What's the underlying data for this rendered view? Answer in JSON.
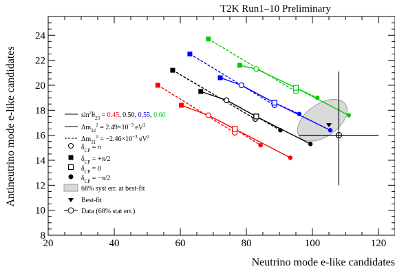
{
  "chart_data": {
    "type": "scatter",
    "title": "T2K Run1–10 Preliminary",
    "xlabel": "Neutrino mode e-like candidates",
    "ylabel": "Antineutrino mode e-like candidates",
    "xlim": [
      20,
      125
    ],
    "ylim": [
      8,
      25.5
    ],
    "xticks": [
      20,
      40,
      60,
      80,
      100,
      120
    ],
    "yticks": [
      8,
      10,
      12,
      14,
      16,
      18,
      20,
      22,
      24
    ],
    "grid": false,
    "legend_position": "left",
    "series": [
      {
        "name": "0.45",
        "color": "#ff0000",
        "normal": {
          "dcp_minus_half_pi": [
            93.3,
            14.2
          ],
          "dcp_zero": [
            76.5,
            16.5
          ],
          "dcp_pi": [
            68.5,
            17.6
          ],
          "dcp_plus_half_pi": [
            60.3,
            18.4
          ]
        },
        "inverted": {
          "dcp_minus_half_pi": [
            84.3,
            15.2
          ],
          "dcp_zero": [
            76.5,
            16.5
          ],
          "dcp_pi": [
            76.5,
            16.2
          ],
          "dcp_plus_half_pi": [
            53.2,
            20.0
          ]
        }
      },
      {
        "name": "0.50",
        "color": "#000000",
        "normal": {
          "dcp_minus_half_pi": [
            99.4,
            15.3
          ],
          "dcp_zero": [
            83.0,
            17.5
          ],
          "dcp_pi": [
            74.0,
            18.8
          ],
          "dcp_plus_half_pi": [
            66.2,
            19.5
          ]
        },
        "inverted": {
          "dcp_minus_half_pi": [
            90.3,
            16.4
          ],
          "dcp_zero": [
            83.0,
            17.5
          ],
          "dcp_pi": [
            82.7,
            17.3
          ],
          "dcp_plus_half_pi": [
            57.7,
            21.2
          ]
        }
      },
      {
        "name": "0.55",
        "color": "#0000ff",
        "normal": {
          "dcp_minus_half_pi": [
            105.4,
            16.4
          ],
          "dcp_zero": [
            88.5,
            18.6
          ],
          "dcp_pi": [
            78.5,
            20.0
          ],
          "dcp_plus_half_pi": [
            72.1,
            20.6
          ]
        },
        "inverted": {
          "dcp_minus_half_pi": [
            96.0,
            17.7
          ],
          "dcp_zero": [
            88.5,
            18.6
          ],
          "dcp_pi": [
            88.5,
            18.4
          ],
          "dcp_plus_half_pi": [
            62.9,
            22.5
          ]
        }
      },
      {
        "name": "0.60",
        "color": "#00cc00",
        "normal": {
          "dcp_minus_half_pi": [
            111.0,
            17.6
          ],
          "dcp_zero": [
            95.0,
            19.8
          ],
          "dcp_pi": [
            83.0,
            21.3
          ],
          "dcp_plus_half_pi": [
            78.0,
            21.6
          ]
        },
        "inverted": {
          "dcp_minus_half_pi": [
            101.5,
            19.0
          ],
          "dcp_zero": [
            95.0,
            19.8
          ],
          "dcp_pi": [
            95.0,
            19.5
          ],
          "dcp_plus_half_pi": [
            68.5,
            23.7
          ]
        }
      }
    ],
    "data_point": {
      "x": 108,
      "y": 16,
      "x_err": [
        96,
        120
      ],
      "y_err": [
        12,
        21.1
      ]
    },
    "syst_ellipse": {
      "cx": 103,
      "cy": 17.2,
      "rx": 8.5,
      "ry": 1.3,
      "angle_deg": -35
    },
    "legend": {
      "sin2_label": "sin",
      "sin2_sup": "2",
      "sin2_theta": "θ",
      "sin2_sub": "23",
      "values_sep": " = ",
      "val1": "0.45",
      "comma1": ", ",
      "val2": "0.50",
      "comma2": ", ",
      "val3": "0.55",
      "comma3": ", ",
      "val4": "0.60",
      "dm32_text": "Δm",
      "dm32_sub": "32",
      "dm32_sup": "2",
      "dm32_value": " = 2.49×10",
      "dm32_exp": "−3",
      "dm32_unit": " eV",
      "dm32_unit_sup": "2",
      "dm31_text": "Δm",
      "dm31_sub": "31",
      "dm31_sup": "2",
      "dm31_value": " = −2.46×10",
      "dm31_exp": "−3",
      "dm31_unit": " eV",
      "dm31_unit_sup": "2",
      "dcp_pi": "δ",
      "dcp_pi_sub": "CP",
      "dcp_pi_val": " = π",
      "dcp_plus": "δ",
      "dcp_plus_sub": "CP",
      "dcp_plus_val": " = +π/2",
      "dcp_zero": "δ",
      "dcp_zero_sub": "CP",
      "dcp_zero_val": " = 0",
      "dcp_minus": "δ",
      "dcp_minus_sub": "CP",
      "dcp_minus_val": " = −π/2",
      "syst": "68% syst err. at best-fit",
      "bestfit": "Best-fit",
      "data": "Data (68% stat err.)"
    },
    "colors": {
      "red": "#ff0000",
      "black": "#000000",
      "blue": "#0000ff",
      "green": "#00cc00",
      "ellipse_fill": "#d9d9d9",
      "ellipse_stroke": "#9a9a9a"
    }
  }
}
